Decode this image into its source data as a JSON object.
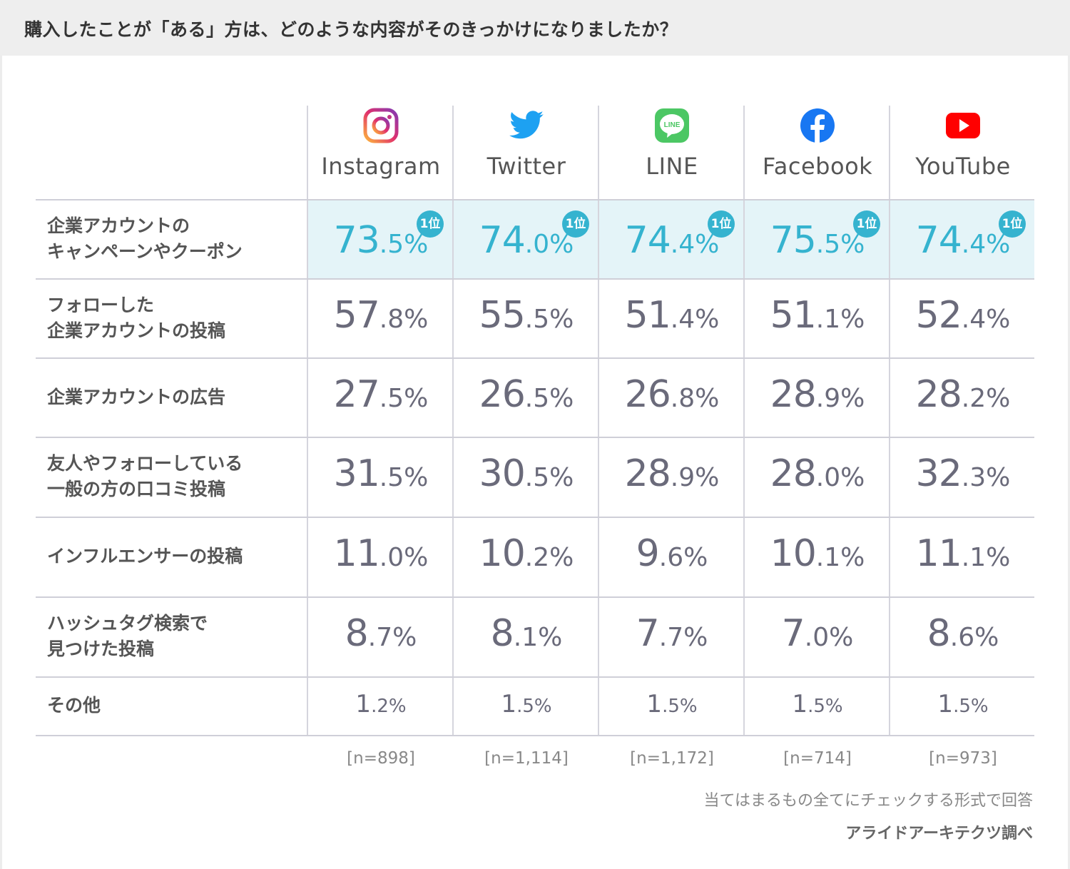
{
  "title": "購入したことが「ある」方は、どのような内容がそのきっかけになりましたか？",
  "rank_badge": "1位",
  "chart_data": {
    "type": "table",
    "columns": [
      "Instagram",
      "Twitter",
      "LINE",
      "Facebook",
      "YouTube"
    ],
    "sample_sizes": [
      "[n=898]",
      "[n=1,114]",
      "[n=1,172]",
      "[n=714]",
      "[n=973]"
    ],
    "rows": [
      {
        "label": [
          "企業アカウントの",
          "キャンペーンやクーポン"
        ],
        "values": [
          "73.5",
          "74.0",
          "74.4",
          "75.5",
          "74.4"
        ],
        "highlight": true
      },
      {
        "label": [
          "フォローした",
          "企業アカウントの投稿"
        ],
        "values": [
          "57.8",
          "55.5",
          "51.4",
          "51.1",
          "52.4"
        ],
        "highlight": false
      },
      {
        "label": [
          "企業アカウントの広告"
        ],
        "values": [
          "27.5",
          "26.5",
          "26.8",
          "28.9",
          "28.2"
        ],
        "highlight": false
      },
      {
        "label": [
          "友人やフォローしている",
          "一般の方の口コミ投稿"
        ],
        "values": [
          "31.5",
          "30.5",
          "28.9",
          "28.0",
          "32.3"
        ],
        "highlight": false
      },
      {
        "label": [
          "インフルエンサーの投稿"
        ],
        "values": [
          "11.0",
          "10.2",
          "9.6",
          "10.1",
          "11.1"
        ],
        "highlight": false
      },
      {
        "label": [
          "ハッシュタグ検索で",
          "見つけた投稿"
        ],
        "values": [
          "8.7",
          "8.1",
          "7.7",
          "7.0",
          "8.6"
        ],
        "highlight": false
      },
      {
        "label": [
          "その他"
        ],
        "values": [
          "1.2",
          "1.5",
          "1.5",
          "1.5",
          "1.5"
        ],
        "highlight": false
      }
    ],
    "unit": "%"
  },
  "icons": [
    "instagram-icon",
    "twitter-icon",
    "line-icon",
    "facebook-icon",
    "youtube-icon"
  ],
  "colors": {
    "highlight_band": "#e4f4f8",
    "teal": "#35b3cf",
    "instagram": "#d6249f",
    "twitter": "#1da1f2",
    "line": "#06c755",
    "facebook": "#1877f2",
    "youtube": "#ff0000"
  },
  "footer": {
    "note": "当てはまるもの全てにチェックする形式で回答",
    "source": "アライドアーキテクツ調べ"
  }
}
